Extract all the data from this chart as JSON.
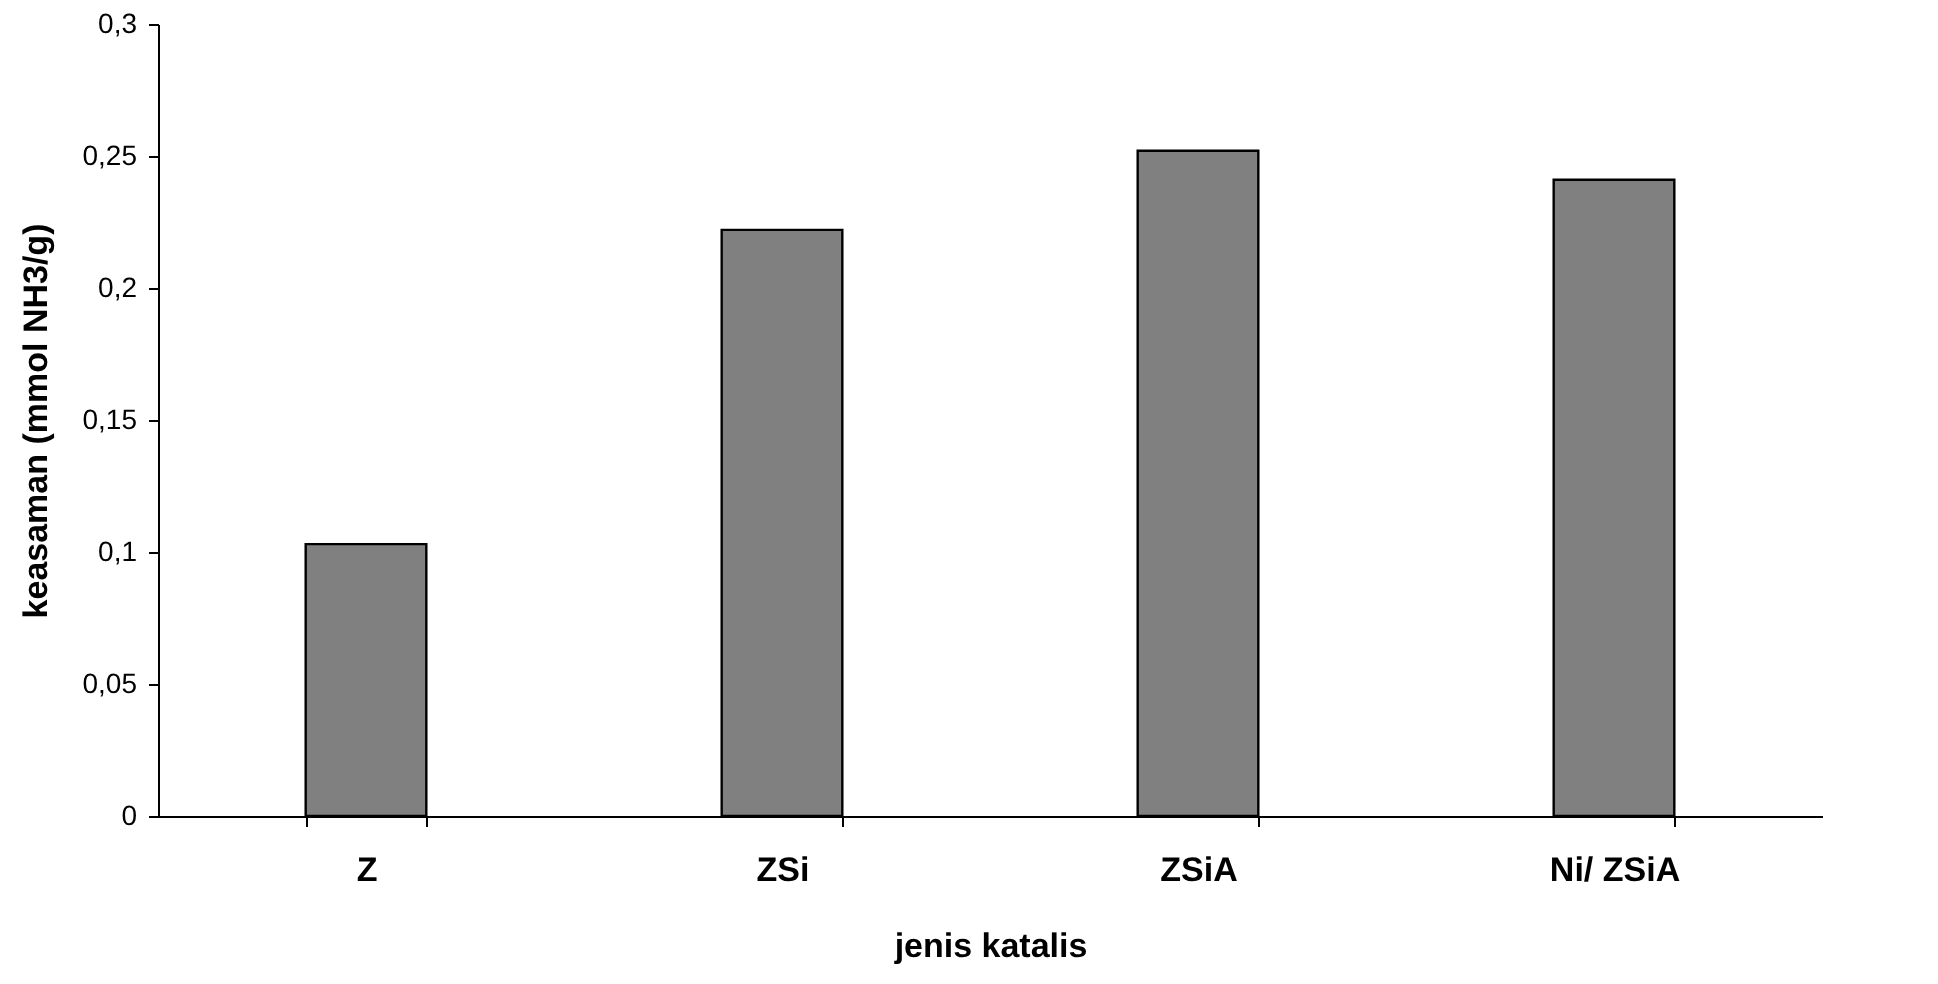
{
  "chart_data": {
    "type": "bar",
    "xlabel": "jenis katalis",
    "ylabel": "keasaman  (mmol NH3/g)",
    "categories": [
      "Z",
      "ZSi",
      "ZSiA",
      "Ni/ ZSiA"
    ],
    "values": [
      0.103,
      0.222,
      0.252,
      0.241
    ],
    "color": "#808080",
    "ylim": [
      0,
      0.3
    ],
    "yticks": [
      {
        "value": 0,
        "label": "0"
      },
      {
        "value": 0.05,
        "label": "0,05"
      },
      {
        "value": 0.1,
        "label": "0,1"
      },
      {
        "value": 0.15,
        "label": "0,15"
      },
      {
        "value": 0.2,
        "label": "0,2"
      },
      {
        "value": 0.25,
        "label": "0,25"
      },
      {
        "value": 0.3,
        "label": "0,3"
      }
    ],
    "grid": false
  }
}
